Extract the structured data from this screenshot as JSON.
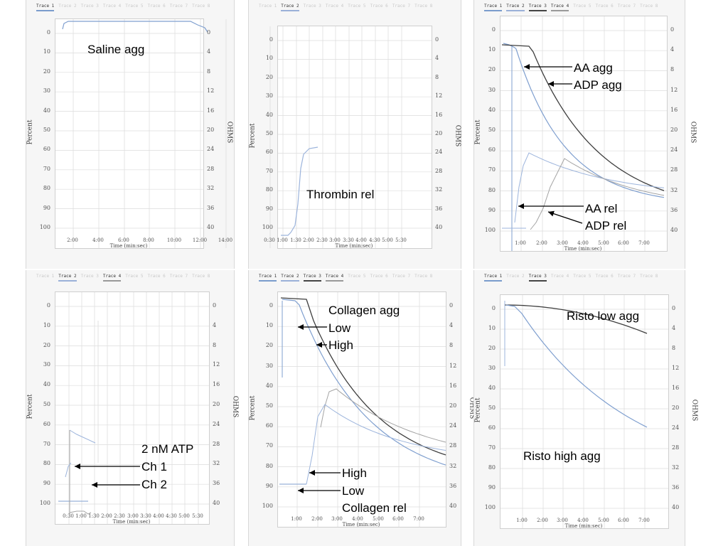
{
  "panels": [
    {
      "id": "p1",
      "tabs": [
        "Trace 1",
        "Trace 2",
        "Trace 3",
        "Trace 4",
        "Trace 5",
        "Trace 6",
        "Trace 7",
        "Trace 8"
      ],
      "active_tabs": [
        {
          "index": 0,
          "color": "#7a9ccc"
        }
      ],
      "ylabel_left": "Percent",
      "ylabel_right": "OHMS",
      "xlabel": "Time (min:sec)",
      "left_ticks": [
        "0",
        "10",
        "20",
        "30",
        "40",
        "50",
        "60",
        "70",
        "80",
        "90",
        "100"
      ],
      "right_ticks": [
        "0",
        "4",
        "8",
        "12",
        "16",
        "20",
        "24",
        "28",
        "32",
        "36",
        "40"
      ],
      "x_ticks": [
        "2:00",
        "4:00",
        "6:00",
        "8:00",
        "10:00",
        "12:00",
        "14:00"
      ],
      "annotations": [
        "Saline agg"
      ]
    },
    {
      "id": "p2",
      "tabs": [
        "Trace 1",
        "Trace 2",
        "Trace 3",
        "Trace 4",
        "Trace 5",
        "Trace 6",
        "Trace 7",
        "Trace 8"
      ],
      "active_tabs": [
        {
          "index": 1,
          "color": "#9ab0d8"
        }
      ],
      "ylabel_left": "Percent",
      "ylabel_right": "OHMS",
      "xlabel": "Time (min:sec)",
      "left_ticks": [
        "0",
        "10",
        "20",
        "30",
        "40",
        "50",
        "60",
        "70",
        "80",
        "90",
        "100"
      ],
      "right_ticks": [
        "0",
        "4",
        "8",
        "12",
        "16",
        "20",
        "24",
        "28",
        "32",
        "36",
        "40"
      ],
      "x_ticks": [
        "0:30",
        "1:00",
        "1:30",
        "2:00",
        "2:30",
        "3:00",
        "3:30",
        "4:00",
        "4:30",
        "5:00",
        "5:30"
      ],
      "annotations": [
        "Thrombin rel"
      ]
    },
    {
      "id": "p3",
      "tabs": [
        "Trace 1",
        "Trace 2",
        "Trace 3",
        "Trace 4",
        "Trace 5",
        "Trace 6",
        "Trace 7",
        "Trace 8"
      ],
      "active_tabs": [
        {
          "index": 0,
          "color": "#7a9ccc"
        },
        {
          "index": 1,
          "color": "#9ab0d8"
        },
        {
          "index": 2,
          "color": "#444444"
        },
        {
          "index": 3,
          "color": "#999999"
        }
      ],
      "ylabel_left": "Percent",
      "ylabel_right": "OHMS",
      "xlabel": "Time (min:sec)",
      "left_ticks": [
        "0",
        "10",
        "20",
        "30",
        "40",
        "50",
        "60",
        "70",
        "80",
        "90",
        "100"
      ],
      "right_ticks": [
        "0",
        "4",
        "8",
        "12",
        "16",
        "20",
        "24",
        "28",
        "32",
        "36",
        "40"
      ],
      "x_ticks": [
        "1:00",
        "2:00",
        "3:00",
        "4:00",
        "5:00",
        "6:00",
        "7:00"
      ],
      "annotations": [
        "AA agg",
        "ADP agg",
        "AA rel",
        "ADP rel"
      ]
    },
    {
      "id": "p4",
      "tabs": [
        "Trace 1",
        "Trace 2",
        "Trace 3",
        "Trace 4",
        "Trace 5",
        "Trace 6",
        "Trace 7",
        "Trace 8"
      ],
      "active_tabs": [
        {
          "index": 1,
          "color": "#9ab0d8"
        },
        {
          "index": 3,
          "color": "#999999"
        }
      ],
      "ylabel_left": "Percent",
      "ylabel_right": "OHMS",
      "xlabel": "Time (min:sec)",
      "left_ticks": [
        "0",
        "10",
        "20",
        "30",
        "40",
        "50",
        "60",
        "70",
        "80",
        "90",
        "100"
      ],
      "right_ticks": [
        "0",
        "4",
        "8",
        "12",
        "16",
        "20",
        "24",
        "28",
        "32",
        "36",
        "40"
      ],
      "x_ticks": [
        "0:30",
        "1:00",
        "1:30",
        "2:00",
        "2:30",
        "3:00",
        "3:30",
        "4:00",
        "4:30",
        "5:00",
        "5:30"
      ],
      "annotations": [
        "2 nM ATP",
        "Ch 1",
        "Ch 2"
      ]
    },
    {
      "id": "p5",
      "tabs": [
        "Trace 1",
        "Trace 2",
        "Trace 3",
        "Trace 4",
        "Trace 5",
        "Trace 6",
        "Trace 7",
        "Trace 8"
      ],
      "active_tabs": [
        {
          "index": 0,
          "color": "#7a9ccc"
        },
        {
          "index": 1,
          "color": "#9ab0d8"
        },
        {
          "index": 2,
          "color": "#444444"
        },
        {
          "index": 3,
          "color": "#999999"
        }
      ],
      "ylabel_left": "Percent",
      "ylabel_right": "OHMS",
      "xlabel": "Time (min:sec)",
      "left_ticks": [
        "0",
        "10",
        "20",
        "30",
        "40",
        "50",
        "60",
        "70",
        "80",
        "90",
        "100"
      ],
      "right_ticks": [
        "0",
        "4",
        "8",
        "12",
        "16",
        "20",
        "24",
        "28",
        "32",
        "36",
        "40"
      ],
      "x_ticks": [
        "1:00",
        "2:00",
        "3:00",
        "4:00",
        "5:00",
        "6:00",
        "7:00"
      ],
      "annotations": [
        "Collagen agg",
        "Low",
        "High",
        "High",
        "Low",
        "Collagen rel"
      ]
    },
    {
      "id": "p6",
      "tabs": [
        "Trace 1",
        "Trace 2",
        "Trace 3",
        "Trace 4",
        "Trace 5",
        "Trace 6",
        "Trace 7",
        "Trace 8"
      ],
      "active_tabs": [
        {
          "index": 0,
          "color": "#7a9ccc"
        },
        {
          "index": 2,
          "color": "#444444"
        }
      ],
      "ylabel_left": "Percent",
      "ylabel_right": "OHMS",
      "xlabel": "Time (min:sec)",
      "left_ticks": [
        "0",
        "10",
        "20",
        "30",
        "40",
        "50",
        "60",
        "70",
        "80",
        "90",
        "100"
      ],
      "right_ticks": [
        "0",
        "4",
        "8",
        "12",
        "16",
        "20",
        "24",
        "28",
        "32",
        "36",
        "40"
      ],
      "x_ticks": [
        "1:00",
        "2:00",
        "3:00",
        "4:00",
        "5:00",
        "6:00",
        "7:00"
      ],
      "annotations": [
        "Risto low agg",
        "Risto high agg"
      ]
    }
  ],
  "colors": {
    "trace_blue": "#7f9fcf",
    "trace_lightblue": "#9cb4dc",
    "trace_dark": "#3f3f3f",
    "trace_gray": "#a4a4a4",
    "grid": "#dcdcdc"
  }
}
